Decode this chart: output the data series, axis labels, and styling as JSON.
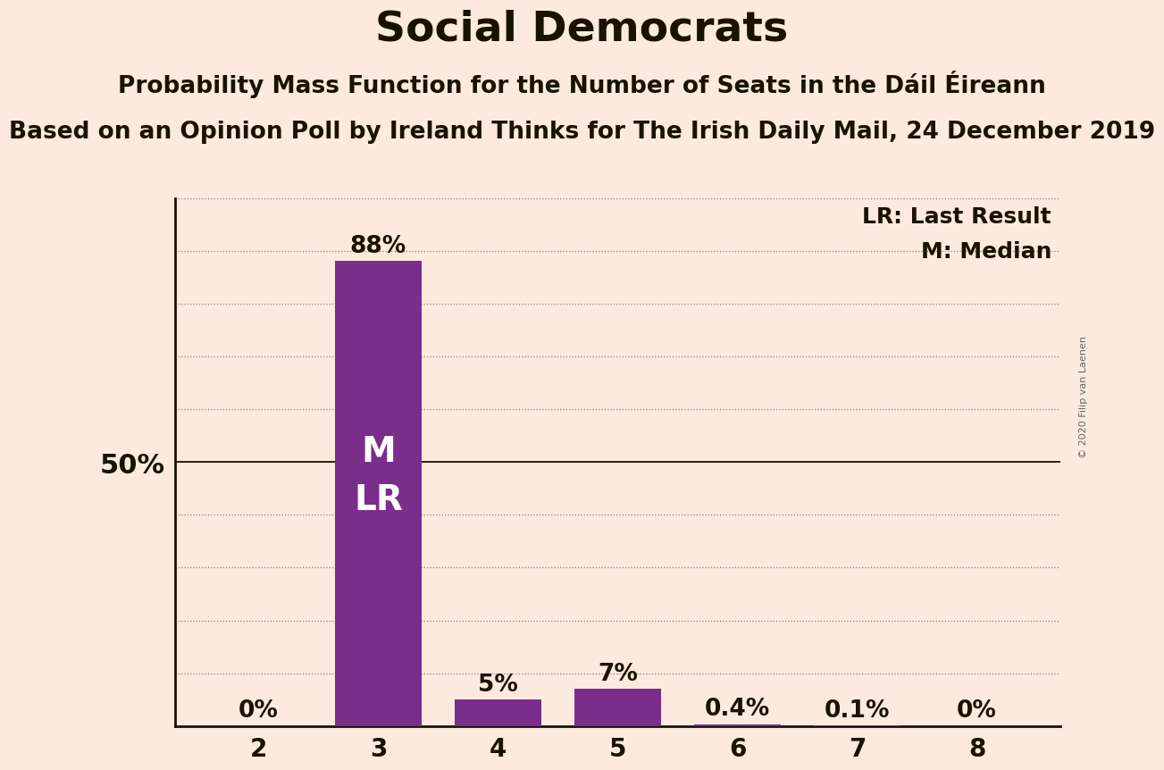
{
  "title": "Social Democrats",
  "subtitle1": "Probability Mass Function for the Number of Seats in the Dáil Éireann",
  "subtitle2": "Based on an Opinion Poll by Ireland Thinks for The Irish Daily Mail, 24 December 2019",
  "watermark": "© 2020 Filip van Laenen",
  "categories": [
    2,
    3,
    4,
    5,
    6,
    7,
    8
  ],
  "values": [
    0.0,
    88.0,
    5.0,
    7.0,
    0.4,
    0.1,
    0.0
  ],
  "bar_labels": [
    "0%",
    "88%",
    "5%",
    "7%",
    "0.4%",
    "0.1%",
    "0%"
  ],
  "bar_color": "#7B2D8B",
  "background_color": "#FCEADE",
  "text_color": "#1a1200",
  "ylabel_50": "50%",
  "ylim": [
    0,
    100
  ],
  "legend_lr": "LR: Last Result",
  "legend_m": "M: Median",
  "median_bar": 3,
  "last_result_bar": 3,
  "inner_label_m": "M",
  "inner_label_lr": "LR",
  "title_fontsize": 34,
  "subtitle1_fontsize": 19,
  "subtitle2_fontsize": 19,
  "bar_label_fontsize": 19,
  "axis_tick_fontsize": 20,
  "inner_label_fontsize": 28,
  "legend_fontsize": 18,
  "watermark_fontsize": 8
}
